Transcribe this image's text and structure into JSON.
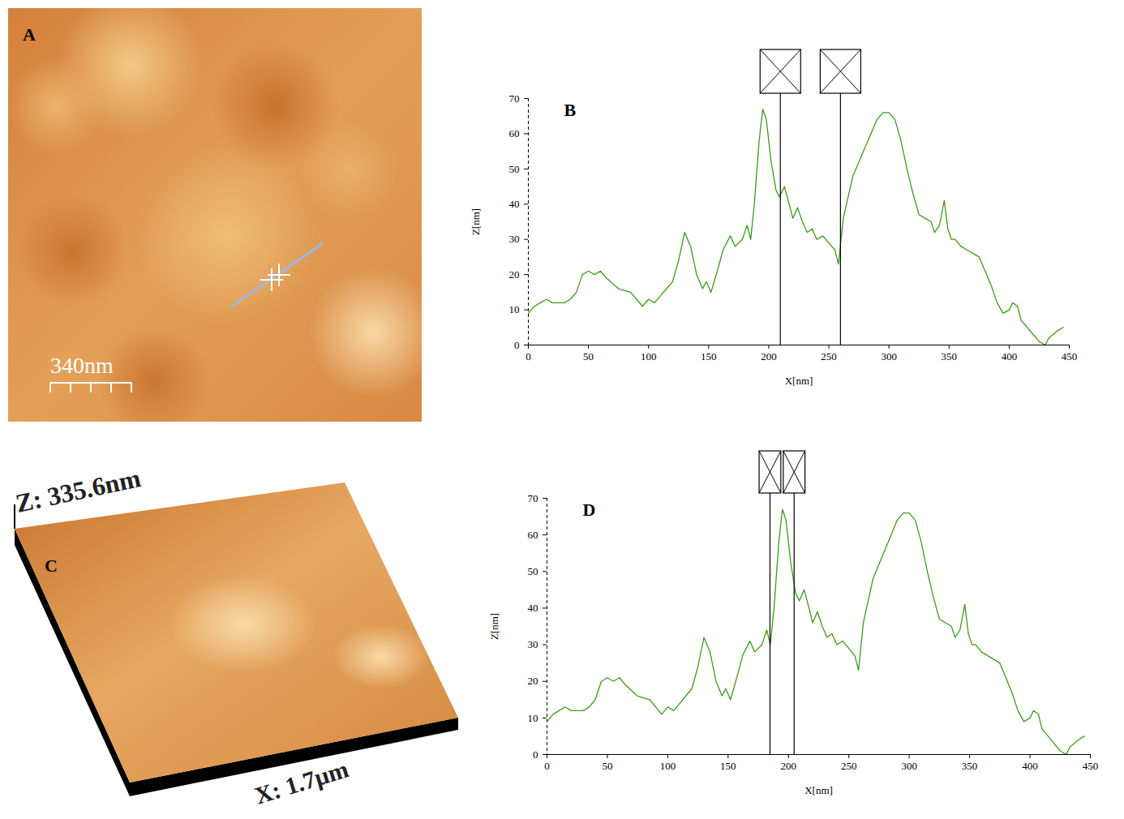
{
  "images": [
    {
      "label": "A",
      "scale_bar": "340nm"
    },
    {
      "label": "C",
      "z_label": "Z: 335.6nm",
      "x_label": "X: 1.7µm"
    }
  ],
  "chart_data": [
    {
      "type": "line",
      "title": "B",
      "x_label": "X[nm]",
      "y_label": "Z[nm]",
      "color": "#3c9a1e",
      "xlim": [
        0,
        450
      ],
      "xticks": [
        0,
        50,
        100,
        150,
        200,
        250,
        300,
        350,
        400,
        450
      ],
      "ylim": [
        0,
        70
      ],
      "yticks": [
        0,
        10,
        20,
        30,
        40,
        50,
        60,
        70
      ],
      "cursors": [
        210,
        260
      ],
      "x": [
        0,
        5,
        10,
        15,
        20,
        30,
        35,
        40,
        45,
        50,
        55,
        60,
        65,
        75,
        85,
        90,
        95,
        100,
        105,
        110,
        115,
        120,
        125,
        130,
        135,
        140,
        145,
        148,
        152,
        158,
        162,
        168,
        172,
        178,
        182,
        185,
        188,
        192,
        195,
        198,
        202,
        206,
        209,
        213,
        217,
        220,
        224,
        228,
        232,
        236,
        240,
        245,
        250,
        255,
        258,
        262,
        266,
        270,
        275,
        280,
        285,
        290,
        295,
        300,
        305,
        310,
        315,
        320,
        325,
        330,
        335,
        338,
        342,
        346,
        349,
        352,
        355,
        360,
        365,
        370,
        375,
        380,
        385,
        390,
        395,
        400,
        403,
        407,
        410,
        415,
        420,
        425,
        430,
        433,
        440,
        445
      ],
      "values": [
        9,
        11,
        12,
        13,
        12,
        12,
        13,
        15,
        20,
        21,
        20,
        21,
        19,
        16,
        15,
        13,
        11,
        13,
        12,
        14,
        16,
        18,
        24,
        32,
        28,
        20,
        16,
        18,
        15,
        22,
        27,
        31,
        28,
        30,
        34,
        30,
        40,
        58,
        67,
        64,
        52,
        44,
        42,
        45,
        40,
        36,
        39,
        35,
        32,
        33,
        30,
        31,
        29,
        27,
        23,
        36,
        42,
        48,
        52,
        56,
        60,
        64,
        66,
        66,
        64,
        58,
        50,
        43,
        37,
        36,
        35,
        32,
        34,
        41,
        33,
        30,
        30,
        28,
        27,
        26,
        25,
        21,
        17,
        12,
        9,
        10,
        12,
        11,
        7,
        5,
        3,
        1,
        0,
        2,
        4,
        5
      ]
    },
    {
      "type": "line",
      "title": "D",
      "x_label": "X[nm]",
      "y_label": "Z[nm]",
      "color": "#3c9a1e",
      "xlim": [
        0,
        450
      ],
      "xticks": [
        0,
        50,
        100,
        150,
        200,
        250,
        300,
        350,
        400,
        450
      ],
      "ylim": [
        0,
        70
      ],
      "yticks": [
        0,
        10,
        20,
        30,
        40,
        50,
        60,
        70
      ],
      "cursors": [
        185,
        205
      ],
      "x": [
        0,
        5,
        10,
        15,
        20,
        30,
        35,
        40,
        45,
        50,
        55,
        60,
        65,
        75,
        85,
        90,
        95,
        100,
        105,
        110,
        115,
        120,
        125,
        130,
        135,
        140,
        145,
        148,
        152,
        158,
        162,
        168,
        172,
        178,
        182,
        185,
        188,
        192,
        195,
        198,
        202,
        206,
        209,
        213,
        217,
        220,
        224,
        228,
        232,
        236,
        240,
        245,
        250,
        255,
        258,
        262,
        266,
        270,
        275,
        280,
        285,
        290,
        295,
        300,
        305,
        310,
        315,
        320,
        325,
        330,
        335,
        338,
        342,
        346,
        349,
        352,
        355,
        360,
        365,
        370,
        375,
        380,
        385,
        390,
        395,
        400,
        403,
        407,
        410,
        415,
        420,
        425,
        430,
        433,
        440,
        445
      ],
      "values": [
        9,
        11,
        12,
        13,
        12,
        12,
        13,
        15,
        20,
        21,
        20,
        21,
        19,
        16,
        15,
        13,
        11,
        13,
        12,
        14,
        16,
        18,
        24,
        32,
        28,
        20,
        16,
        18,
        15,
        22,
        27,
        31,
        28,
        30,
        34,
        30,
        40,
        58,
        67,
        64,
        52,
        44,
        42,
        45,
        40,
        36,
        39,
        35,
        32,
        33,
        30,
        31,
        29,
        27,
        23,
        36,
        42,
        48,
        52,
        56,
        60,
        64,
        66,
        66,
        64,
        58,
        50,
        43,
        37,
        36,
        35,
        32,
        34,
        41,
        33,
        30,
        30,
        28,
        27,
        26,
        25,
        21,
        17,
        12,
        9,
        10,
        12,
        11,
        7,
        5,
        3,
        1,
        0,
        2,
        4,
        5
      ]
    }
  ]
}
